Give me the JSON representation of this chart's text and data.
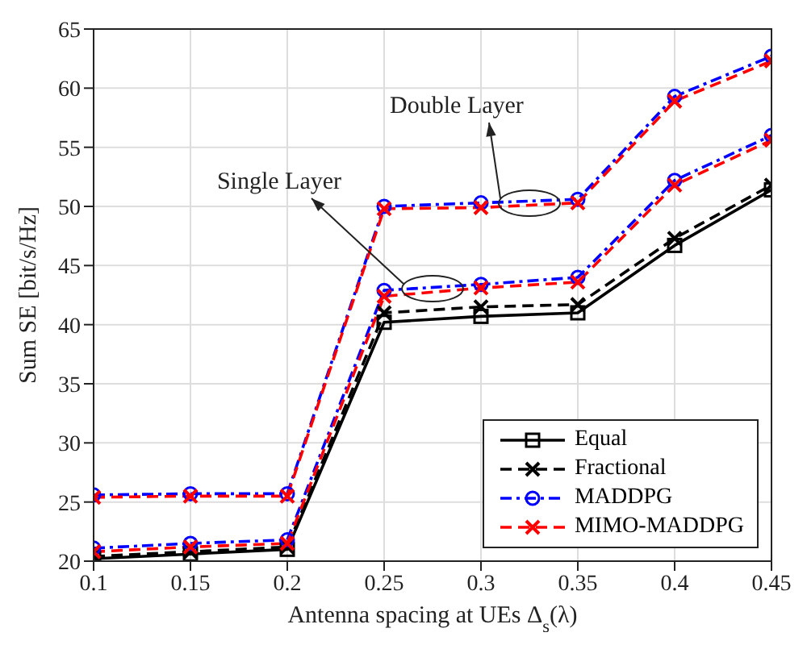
{
  "chart_data": {
    "type": "line",
    "xlabel": "Antenna spacing at UEs Δ$_{s}$(λ)",
    "ylabel": "Sum SE [bit/s/Hz]",
    "x": [
      0.1,
      0.15,
      0.2,
      0.25,
      0.3,
      0.35,
      0.4,
      0.45
    ],
    "xlim": [
      0.1,
      0.45
    ],
    "xticks": [
      0.1,
      0.15,
      0.2,
      0.25,
      0.3,
      0.35,
      0.4,
      0.45
    ],
    "ylim": [
      20,
      65
    ],
    "yticks": [
      20,
      25,
      30,
      35,
      40,
      45,
      50,
      55,
      60,
      65
    ],
    "grid": true,
    "legend": "bottom right",
    "annotations": [
      "Single Layer",
      "Double Layer"
    ],
    "series": [
      {
        "name": "Equal",
        "color": "#000000",
        "marker": "square",
        "line_style": "solid",
        "values": [
          20.2,
          20.6,
          21.0,
          40.2,
          40.7,
          41.0,
          46.7,
          51.4
        ]
      },
      {
        "name": "Fractional",
        "color": "#000000",
        "marker": "cross",
        "line_style": "dashed",
        "values": [
          20.4,
          20.8,
          21.2,
          41.0,
          41.5,
          41.7,
          47.3,
          51.8
        ]
      },
      {
        "name": "MADDPG",
        "color": "#0000ff",
        "marker": "circle",
        "line_style": "dashdot",
        "values": [
          21.1,
          21.5,
          21.8,
          42.9,
          43.4,
          44.0,
          52.2,
          56.0
        ]
      },
      {
        "name": "MIMO-MADDPG",
        "color": "#ff0000",
        "marker": "cross",
        "line_style": "dashed",
        "values": [
          20.8,
          21.2,
          21.5,
          42.4,
          43.1,
          43.6,
          51.8,
          55.6
        ]
      },
      {
        "color": "#0000ff",
        "marker": "circle",
        "line_style": "dashdot",
        "values": [
          25.6,
          25.7,
          25.7,
          50.0,
          50.3,
          50.6,
          59.3,
          62.7
        ]
      },
      {
        "color": "#ff0000",
        "marker": "cross",
        "line_style": "dashed",
        "values": [
          25.4,
          25.5,
          25.5,
          49.8,
          49.9,
          50.3,
          58.9,
          62.3
        ]
      }
    ]
  }
}
